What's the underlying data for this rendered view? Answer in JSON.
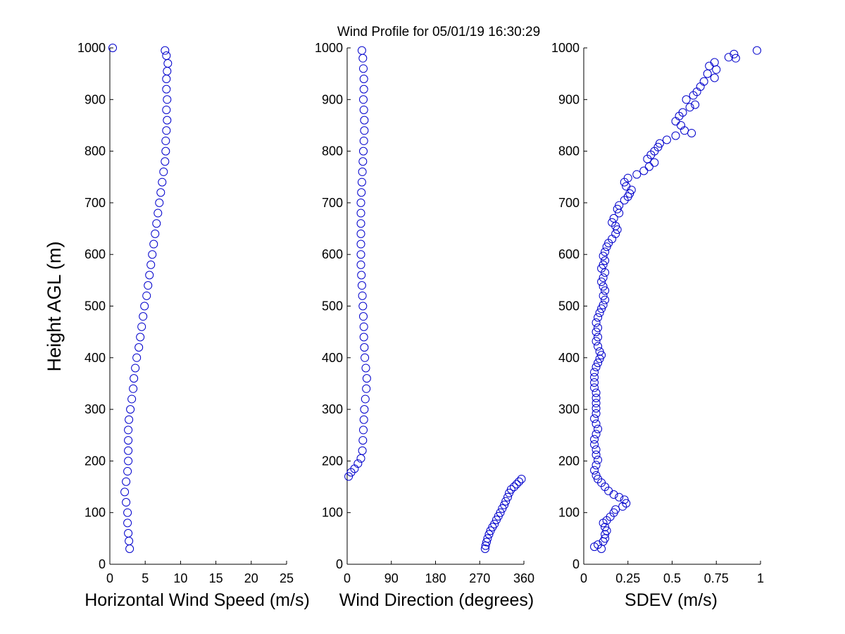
{
  "chart_data": {
    "type": "scatter",
    "title": "Wind Profile for  05/01/19 16:30:29",
    "ylabel": "Height AGL (m)",
    "marker_color": "#0000cc",
    "axis_color": "#000000",
    "panels": [
      {
        "id": "speed",
        "xlabel": "Horizontal Wind Speed (m/s)",
        "xlim": [
          0,
          25
        ],
        "xticks": [
          "0",
          "5",
          "10",
          "15",
          "20",
          "25"
        ],
        "ylim": [
          0,
          1000
        ],
        "yticks": [
          "0",
          "100",
          "200",
          "300",
          "400",
          "500",
          "600",
          "700",
          "800",
          "900",
          "1000"
        ],
        "points": [
          [
            0.4,
            1000
          ],
          [
            7.8,
            995
          ],
          [
            8.0,
            985
          ],
          [
            8.2,
            970
          ],
          [
            8.1,
            955
          ],
          [
            8.0,
            940
          ],
          [
            8.0,
            920
          ],
          [
            8.1,
            900
          ],
          [
            8.0,
            880
          ],
          [
            8.1,
            860
          ],
          [
            8.0,
            840
          ],
          [
            7.9,
            820
          ],
          [
            7.9,
            800
          ],
          [
            7.8,
            780
          ],
          [
            7.6,
            760
          ],
          [
            7.4,
            740
          ],
          [
            7.2,
            720
          ],
          [
            7.0,
            700
          ],
          [
            6.8,
            680
          ],
          [
            6.6,
            660
          ],
          [
            6.4,
            640
          ],
          [
            6.2,
            620
          ],
          [
            6.0,
            600
          ],
          [
            5.8,
            580
          ],
          [
            5.6,
            560
          ],
          [
            5.4,
            540
          ],
          [
            5.2,
            520
          ],
          [
            4.9,
            500
          ],
          [
            4.7,
            480
          ],
          [
            4.5,
            460
          ],
          [
            4.3,
            440
          ],
          [
            4.1,
            420
          ],
          [
            3.8,
            400
          ],
          [
            3.6,
            380
          ],
          [
            3.4,
            360
          ],
          [
            3.3,
            340
          ],
          [
            3.1,
            320
          ],
          [
            2.9,
            300
          ],
          [
            2.7,
            280
          ],
          [
            2.6,
            260
          ],
          [
            2.6,
            240
          ],
          [
            2.6,
            220
          ],
          [
            2.6,
            200
          ],
          [
            2.5,
            180
          ],
          [
            2.3,
            160
          ],
          [
            2.1,
            140
          ],
          [
            2.3,
            120
          ],
          [
            2.5,
            100
          ],
          [
            2.5,
            80
          ],
          [
            2.6,
            60
          ],
          [
            2.7,
            45
          ],
          [
            2.8,
            30
          ]
        ]
      },
      {
        "id": "direction",
        "xlabel": "Wind Direction (degrees)",
        "xlim": [
          0,
          360
        ],
        "xticks": [
          "0",
          "90",
          "180",
          "270",
          "360"
        ],
        "ylim": [
          0,
          1000
        ],
        "yticks": [
          "0",
          "100",
          "200",
          "300",
          "400",
          "500",
          "600",
          "700",
          "800",
          "900",
          "1000"
        ],
        "points": [
          [
            30,
            995
          ],
          [
            32,
            980
          ],
          [
            33,
            960
          ],
          [
            34,
            940
          ],
          [
            34,
            920
          ],
          [
            33,
            900
          ],
          [
            34,
            880
          ],
          [
            35,
            860
          ],
          [
            35,
            840
          ],
          [
            34,
            820
          ],
          [
            33,
            800
          ],
          [
            32,
            780
          ],
          [
            31,
            760
          ],
          [
            30,
            740
          ],
          [
            29,
            720
          ],
          [
            28,
            700
          ],
          [
            28,
            680
          ],
          [
            28,
            660
          ],
          [
            28,
            640
          ],
          [
            28,
            620
          ],
          [
            28,
            600
          ],
          [
            28,
            580
          ],
          [
            29,
            560
          ],
          [
            30,
            540
          ],
          [
            31,
            520
          ],
          [
            32,
            500
          ],
          [
            33,
            480
          ],
          [
            34,
            460
          ],
          [
            34,
            440
          ],
          [
            35,
            420
          ],
          [
            36,
            400
          ],
          [
            38,
            380
          ],
          [
            40,
            360
          ],
          [
            39,
            340
          ],
          [
            37,
            320
          ],
          [
            35,
            300
          ],
          [
            34,
            280
          ],
          [
            33,
            260
          ],
          [
            32,
            240
          ],
          [
            31,
            220
          ],
          [
            28,
            205
          ],
          [
            22,
            195
          ],
          [
            15,
            185
          ],
          [
            8,
            178
          ],
          [
            3,
            170
          ],
          [
            355,
            165
          ],
          [
            350,
            160
          ],
          [
            345,
            155
          ],
          [
            340,
            150
          ],
          [
            334,
            145
          ],
          [
            330,
            138
          ],
          [
            327,
            130
          ],
          [
            323,
            122
          ],
          [
            320,
            115
          ],
          [
            316,
            108
          ],
          [
            312,
            100
          ],
          [
            308,
            93
          ],
          [
            304,
            86
          ],
          [
            300,
            78
          ],
          [
            296,
            72
          ],
          [
            292,
            65
          ],
          [
            289,
            58
          ],
          [
            286,
            50
          ],
          [
            284,
            43
          ],
          [
            282,
            36
          ],
          [
            281,
            30
          ]
        ]
      },
      {
        "id": "sdev",
        "xlabel": "SDEV  (m/s)",
        "xlim": [
          0,
          1
        ],
        "xticks": [
          "0",
          "0.25",
          "0.5",
          "0.75",
          "1"
        ],
        "ylim": [
          0,
          1000
        ],
        "yticks": [
          "0",
          "100",
          "200",
          "300",
          "400",
          "500",
          "600",
          "700",
          "800",
          "900",
          "1000"
        ],
        "points": [
          [
            0.98,
            995
          ],
          [
            0.85,
            988
          ],
          [
            0.82,
            982
          ],
          [
            0.86,
            980
          ],
          [
            0.74,
            972
          ],
          [
            0.71,
            965
          ],
          [
            0.75,
            958
          ],
          [
            0.7,
            950
          ],
          [
            0.74,
            942
          ],
          [
            0.68,
            935
          ],
          [
            0.66,
            925
          ],
          [
            0.64,
            915
          ],
          [
            0.62,
            908
          ],
          [
            0.58,
            900
          ],
          [
            0.63,
            890
          ],
          [
            0.6,
            885
          ],
          [
            0.56,
            875
          ],
          [
            0.54,
            868
          ],
          [
            0.52,
            858
          ],
          [
            0.55,
            850
          ],
          [
            0.57,
            840
          ],
          [
            0.61,
            835
          ],
          [
            0.52,
            830
          ],
          [
            0.47,
            822
          ],
          [
            0.43,
            815
          ],
          [
            0.42,
            808
          ],
          [
            0.4,
            800
          ],
          [
            0.38,
            793
          ],
          [
            0.36,
            785
          ],
          [
            0.4,
            778
          ],
          [
            0.37,
            770
          ],
          [
            0.34,
            762
          ],
          [
            0.3,
            755
          ],
          [
            0.25,
            748
          ],
          [
            0.23,
            740
          ],
          [
            0.24,
            732
          ],
          [
            0.27,
            725
          ],
          [
            0.26,
            718
          ],
          [
            0.25,
            712
          ],
          [
            0.23,
            705
          ],
          [
            0.2,
            695
          ],
          [
            0.19,
            688
          ],
          [
            0.2,
            680
          ],
          [
            0.17,
            670
          ],
          [
            0.16,
            662
          ],
          [
            0.18,
            655
          ],
          [
            0.19,
            648
          ],
          [
            0.18,
            640
          ],
          [
            0.16,
            630
          ],
          [
            0.14,
            622
          ],
          [
            0.13,
            615
          ],
          [
            0.12,
            605
          ],
          [
            0.11,
            597
          ],
          [
            0.12,
            588
          ],
          [
            0.11,
            580
          ],
          [
            0.1,
            573
          ],
          [
            0.12,
            565
          ],
          [
            0.11,
            555
          ],
          [
            0.1,
            547
          ],
          [
            0.11,
            538
          ],
          [
            0.12,
            530
          ],
          [
            0.11,
            520
          ],
          [
            0.12,
            512
          ],
          [
            0.11,
            502
          ],
          [
            0.1,
            495
          ],
          [
            0.09,
            487
          ],
          [
            0.08,
            478
          ],
          [
            0.07,
            468
          ],
          [
            0.08,
            458
          ],
          [
            0.07,
            450
          ],
          [
            0.08,
            440
          ],
          [
            0.07,
            432
          ],
          [
            0.08,
            422
          ],
          [
            0.09,
            412
          ],
          [
            0.1,
            405
          ],
          [
            0.09,
            398
          ],
          [
            0.08,
            390
          ],
          [
            0.07,
            382
          ],
          [
            0.06,
            372
          ],
          [
            0.06,
            362
          ],
          [
            0.06,
            352
          ],
          [
            0.06,
            342
          ],
          [
            0.07,
            332
          ],
          [
            0.07,
            322
          ],
          [
            0.07,
            312
          ],
          [
            0.07,
            302
          ],
          [
            0.07,
            292
          ],
          [
            0.06,
            282
          ],
          [
            0.07,
            272
          ],
          [
            0.08,
            262
          ],
          [
            0.07,
            252
          ],
          [
            0.06,
            242
          ],
          [
            0.06,
            232
          ],
          [
            0.07,
            222
          ],
          [
            0.07,
            212
          ],
          [
            0.08,
            202
          ],
          [
            0.07,
            192
          ],
          [
            0.06,
            182
          ],
          [
            0.07,
            172
          ],
          [
            0.08,
            165
          ],
          [
            0.1,
            158
          ],
          [
            0.12,
            150
          ],
          [
            0.14,
            142
          ],
          [
            0.17,
            135
          ],
          [
            0.2,
            130
          ],
          [
            0.23,
            125
          ],
          [
            0.24,
            118
          ],
          [
            0.22,
            112
          ],
          [
            0.18,
            106
          ],
          [
            0.17,
            100
          ],
          [
            0.15,
            92
          ],
          [
            0.13,
            85
          ],
          [
            0.11,
            80
          ],
          [
            0.12,
            72
          ],
          [
            0.13,
            65
          ],
          [
            0.12,
            58
          ],
          [
            0.12,
            50
          ],
          [
            0.11,
            44
          ],
          [
            0.08,
            38
          ],
          [
            0.06,
            34
          ],
          [
            0.1,
            30
          ]
        ]
      }
    ]
  }
}
